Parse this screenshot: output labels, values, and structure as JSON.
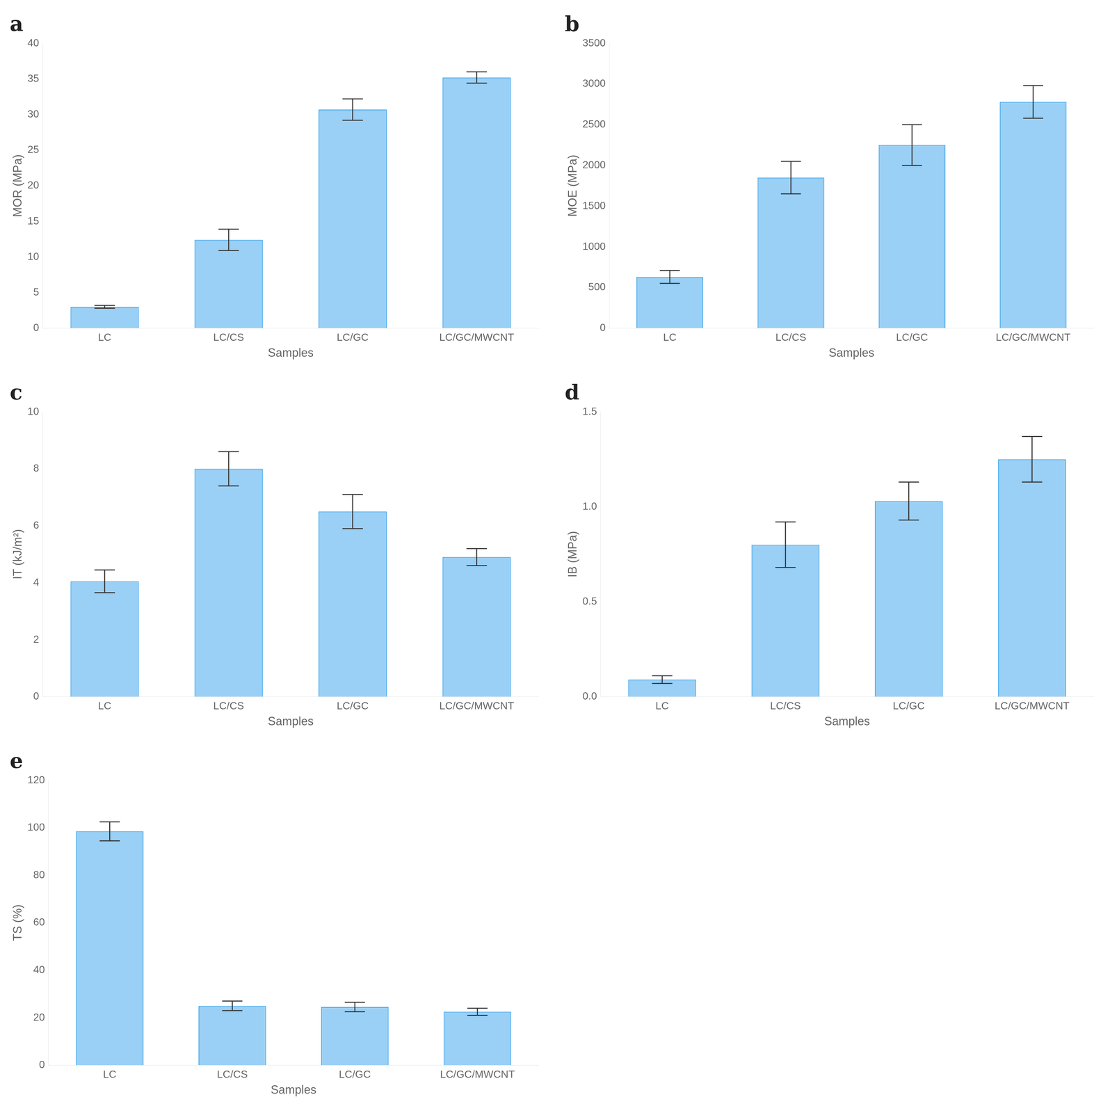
{
  "chart_data": [
    {
      "type": "bar",
      "title": "a",
      "categories": [
        "LC",
        "LC/CS",
        "LC/GC",
        "LC/GC/MWCNT"
      ],
      "values": [
        3.0,
        12.4,
        30.7,
        35.2
      ],
      "errors": [
        0.2,
        1.5,
        1.5,
        0.8
      ],
      "xlabel": "Samples",
      "ylabel": "MOR (MPa)",
      "ylim": [
        0,
        40
      ],
      "yticks": [
        0,
        5,
        10,
        15,
        20,
        25,
        30,
        35,
        40
      ],
      "grid": false
    },
    {
      "type": "bar",
      "title": "b",
      "categories": [
        "LC",
        "LC/CS",
        "LC/GC",
        "LC/GC/MWCNT"
      ],
      "values": [
        630,
        1850,
        2250,
        2780
      ],
      "errors": [
        80,
        200,
        250,
        200
      ],
      "xlabel": "Samples",
      "ylabel": "MOE (MPa)",
      "ylim": [
        0,
        3500
      ],
      "yticks": [
        0,
        500,
        1000,
        1500,
        2000,
        2500,
        3000,
        3500
      ],
      "grid": false
    },
    {
      "type": "bar",
      "title": "c",
      "categories": [
        "LC",
        "LC/CS",
        "LC/GC",
        "LC/GC/MWCNT"
      ],
      "values": [
        4.05,
        8.0,
        6.5,
        4.9
      ],
      "errors": [
        0.4,
        0.6,
        0.6,
        0.3
      ],
      "xlabel": "Samples",
      "ylabel": "IT (kJ/m²)",
      "ylim": [
        0,
        10
      ],
      "yticks": [
        0,
        2,
        4,
        6,
        8,
        10
      ],
      "grid": false
    },
    {
      "type": "bar",
      "title": "d",
      "categories": [
        "LC",
        "LC/CS",
        "LC/GC",
        "LC/GC/MWCNT"
      ],
      "values": [
        0.09,
        0.8,
        1.03,
        1.25
      ],
      "errors": [
        0.02,
        0.12,
        0.1,
        0.12
      ],
      "xlabel": "Samples",
      "ylabel": "IB (MPa)",
      "ylim": [
        0,
        1.5
      ],
      "yticks": [
        {
          "value": 0,
          "label": "0.0"
        },
        0.5,
        {
          "value": 1,
          "label": "1.0"
        },
        1.5
      ],
      "grid": false
    },
    {
      "type": "bar",
      "title": "e",
      "categories": [
        "LC",
        "LC/CS",
        "LC/GC",
        "LC/GC/MWCNT"
      ],
      "values": [
        98.5,
        25.0,
        24.5,
        22.5
      ],
      "errors": [
        4.0,
        2.0,
        2.0,
        1.5
      ],
      "xlabel": "Samples",
      "ylabel": "TS (%)",
      "ylim": [
        0,
        120
      ],
      "yticks": [
        0,
        20,
        40,
        60,
        80,
        100,
        120
      ],
      "grid": false
    }
  ]
}
